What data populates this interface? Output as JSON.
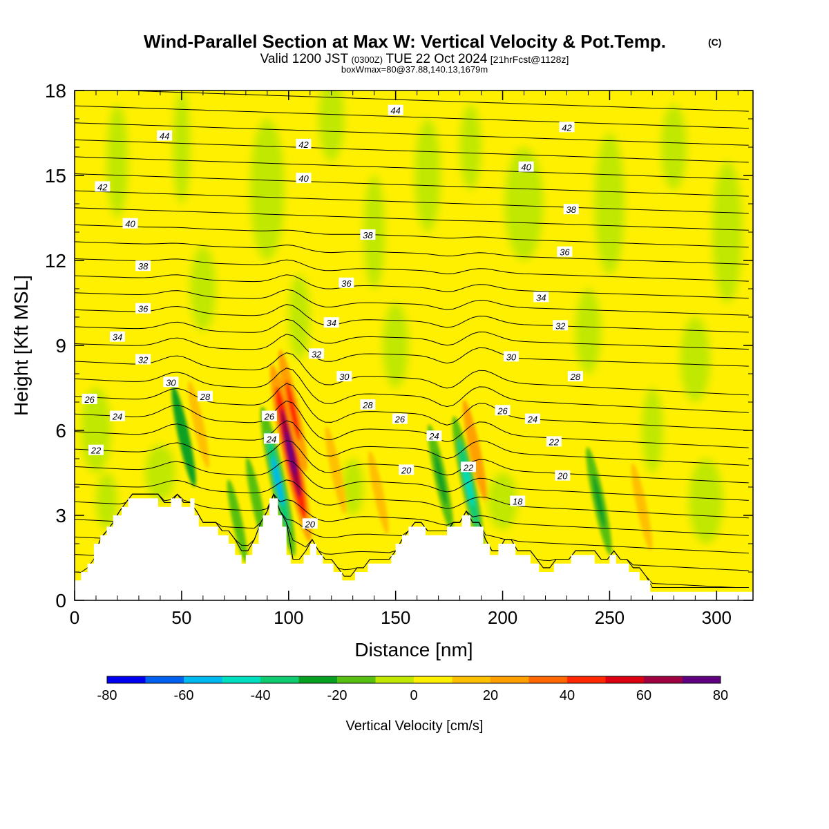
{
  "header": {
    "title": "Wind-Parallel Section at Max W: Vertical Velocity & Pot.Temp.",
    "title_mark": "(C)",
    "valid_prefix": "Valid 1200 JST",
    "valid_zulu": "(0300Z)",
    "valid_date": "TUE 22 Oct 2024",
    "forecast": "[21hrFcst@1128z]",
    "box_info": "boxWmax=80@37.88,140.13,1679m"
  },
  "chart_data": {
    "type": "heatmap",
    "xlabel": "Distance [nm]",
    "ylabel": "Height [Kft MSL]",
    "xlim": [
      0,
      317
    ],
    "ylim": [
      0,
      18
    ],
    "x_ticks": [
      0,
      50,
      100,
      150,
      200,
      250,
      300
    ],
    "y_ticks": [
      0,
      3,
      6,
      9,
      12,
      15,
      18
    ],
    "colorbar": {
      "label": "Vertical Velocity [cm/s]",
      "tick_values": [
        -80,
        -60,
        -40,
        -20,
        0,
        20,
        40,
        60,
        80
      ],
      "colors": [
        "#0000f0",
        "#0060f0",
        "#00b8f0",
        "#00e0c0",
        "#10cc70",
        "#08a020",
        "#58c010",
        "#c0e800",
        "#fff000",
        "#ffc000",
        "#ffa000",
        "#ff6800",
        "#ff2800",
        "#dc0010",
        "#a00040",
        "#600080"
      ]
    },
    "theta_contour_labels": [
      {
        "v": "44",
        "x": 150,
        "y": 17.3
      },
      {
        "v": "42",
        "x": 230,
        "y": 16.7
      },
      {
        "v": "44",
        "x": 42,
        "y": 16.4
      },
      {
        "v": "42",
        "x": 107,
        "y": 16.1
      },
      {
        "v": "40",
        "x": 211,
        "y": 15.3
      },
      {
        "v": "40",
        "x": 107,
        "y": 14.9
      },
      {
        "v": "42",
        "x": 13,
        "y": 14.6
      },
      {
        "v": "38",
        "x": 232,
        "y": 13.8
      },
      {
        "v": "40",
        "x": 26,
        "y": 13.3
      },
      {
        "v": "38",
        "x": 137,
        "y": 12.9
      },
      {
        "v": "36",
        "x": 229,
        "y": 12.3
      },
      {
        "v": "38",
        "x": 32,
        "y": 11.8
      },
      {
        "v": "36",
        "x": 127,
        "y": 11.2
      },
      {
        "v": "34",
        "x": 218,
        "y": 10.7
      },
      {
        "v": "36",
        "x": 32,
        "y": 10.3
      },
      {
        "v": "34",
        "x": 120,
        "y": 9.8
      },
      {
        "v": "32",
        "x": 227,
        "y": 9.7
      },
      {
        "v": "34",
        "x": 20,
        "y": 9.3
      },
      {
        "v": "32",
        "x": 113,
        "y": 8.7
      },
      {
        "v": "30",
        "x": 204,
        "y": 8.6
      },
      {
        "v": "32",
        "x": 32,
        "y": 8.5
      },
      {
        "v": "28",
        "x": 234,
        "y": 7.9
      },
      {
        "v": "30",
        "x": 126,
        "y": 7.9
      },
      {
        "v": "30",
        "x": 45,
        "y": 7.7
      },
      {
        "v": "28",
        "x": 61,
        "y": 7.2
      },
      {
        "v": "26",
        "x": 7,
        "y": 7.1
      },
      {
        "v": "28",
        "x": 137,
        "y": 6.9
      },
      {
        "v": "26",
        "x": 200,
        "y": 6.7
      },
      {
        "v": "26",
        "x": 91,
        "y": 6.5
      },
      {
        "v": "24",
        "x": 20,
        "y": 6.5
      },
      {
        "v": "26",
        "x": 152,
        "y": 6.4
      },
      {
        "v": "24",
        "x": 214,
        "y": 6.4
      },
      {
        "v": "24",
        "x": 168,
        "y": 5.8
      },
      {
        "v": "24",
        "x": 92,
        "y": 5.7
      },
      {
        "v": "22",
        "x": 224,
        "y": 5.6
      },
      {
        "v": "22",
        "x": 10,
        "y": 5.3
      },
      {
        "v": "22",
        "x": 184,
        "y": 4.7
      },
      {
        "v": "20",
        "x": 155,
        "y": 4.6
      },
      {
        "v": "20",
        "x": 228,
        "y": 4.4
      },
      {
        "v": "18",
        "x": 207,
        "y": 3.5
      },
      {
        "v": "20",
        "x": 110,
        "y": 2.7
      }
    ],
    "terrain_kft": [
      [
        0,
        0.7
      ],
      [
        3,
        0.7
      ],
      [
        3,
        1.0
      ],
      [
        6,
        1.0
      ],
      [
        6,
        1.3
      ],
      [
        9,
        1.3
      ],
      [
        9,
        2.0
      ],
      [
        12,
        2.0
      ],
      [
        12,
        2.3
      ],
      [
        15,
        2.3
      ],
      [
        15,
        2.6
      ],
      [
        18,
        2.6
      ],
      [
        18,
        3.0
      ],
      [
        22,
        3.0
      ],
      [
        22,
        3.3
      ],
      [
        25,
        3.3
      ],
      [
        25,
        3.6
      ],
      [
        39,
        3.6
      ],
      [
        39,
        3.3
      ],
      [
        45,
        3.3
      ],
      [
        45,
        3.6
      ],
      [
        50,
        3.6
      ],
      [
        50,
        3.3
      ],
      [
        54,
        3.3
      ],
      [
        54,
        3.6
      ],
      [
        56,
        3.6
      ],
      [
        56,
        3.0
      ],
      [
        58,
        3.0
      ],
      [
        58,
        2.6
      ],
      [
        67,
        2.6
      ],
      [
        67,
        2.3
      ],
      [
        72,
        2.3
      ],
      [
        72,
        2.0
      ],
      [
        75,
        2.0
      ],
      [
        75,
        1.6
      ],
      [
        78,
        1.6
      ],
      [
        78,
        1.3
      ],
      [
        80,
        1.3
      ],
      [
        80,
        1.6
      ],
      [
        83,
        1.6
      ],
      [
        83,
        2.0
      ],
      [
        86,
        2.0
      ],
      [
        86,
        2.6
      ],
      [
        88,
        2.6
      ],
      [
        88,
        3.0
      ],
      [
        91,
        3.0
      ],
      [
        91,
        3.6
      ],
      [
        95,
        3.6
      ],
      [
        95,
        3.0
      ],
      [
        97,
        3.0
      ],
      [
        97,
        2.6
      ],
      [
        99,
        2.6
      ],
      [
        99,
        1.6
      ],
      [
        101,
        1.6
      ],
      [
        101,
        1.3
      ],
      [
        107,
        1.3
      ],
      [
        107,
        1.6
      ],
      [
        110,
        1.6
      ],
      [
        110,
        2.0
      ],
      [
        113,
        2.0
      ],
      [
        113,
        1.6
      ],
      [
        116,
        1.6
      ],
      [
        116,
        1.3
      ],
      [
        121,
        1.3
      ],
      [
        121,
        1.0
      ],
      [
        125,
        1.0
      ],
      [
        125,
        0.7
      ],
      [
        131,
        0.7
      ],
      [
        131,
        1.0
      ],
      [
        137,
        1.0
      ],
      [
        137,
        1.3
      ],
      [
        148,
        1.3
      ],
      [
        148,
        1.6
      ],
      [
        150,
        1.6
      ],
      [
        150,
        2.0
      ],
      [
        153,
        2.0
      ],
      [
        153,
        2.3
      ],
      [
        156,
        2.3
      ],
      [
        156,
        2.6
      ],
      [
        164,
        2.6
      ],
      [
        164,
        2.3
      ],
      [
        174,
        2.3
      ],
      [
        174,
        2.6
      ],
      [
        181,
        2.6
      ],
      [
        181,
        3.0
      ],
      [
        185,
        3.0
      ],
      [
        185,
        2.6
      ],
      [
        191,
        2.6
      ],
      [
        191,
        2.0
      ],
      [
        194,
        2.0
      ],
      [
        194,
        1.6
      ],
      [
        198,
        1.6
      ],
      [
        198,
        2.0
      ],
      [
        206,
        2.0
      ],
      [
        206,
        1.6
      ],
      [
        213,
        1.6
      ],
      [
        213,
        1.3
      ],
      [
        217,
        1.3
      ],
      [
        217,
        1.0
      ],
      [
        224,
        1.0
      ],
      [
        224,
        1.3
      ],
      [
        232,
        1.3
      ],
      [
        232,
        1.6
      ],
      [
        243,
        1.6
      ],
      [
        243,
        1.3
      ],
      [
        250,
        1.3
      ],
      [
        250,
        1.6
      ],
      [
        253,
        1.6
      ],
      [
        253,
        1.3
      ],
      [
        259,
        1.3
      ],
      [
        259,
        1.0
      ],
      [
        264,
        1.0
      ],
      [
        264,
        0.7
      ],
      [
        269,
        0.7
      ],
      [
        269,
        0.3
      ],
      [
        317,
        0.3
      ]
    ],
    "updraft_cores_cms": [
      {
        "x": 101,
        "y": 5.2,
        "w": 80
      },
      {
        "x": 102,
        "y": 6.7,
        "w": 40
      },
      {
        "x": 58,
        "y": 6.2,
        "w": 15
      },
      {
        "x": 187,
        "y": 5.3,
        "w": 25
      },
      {
        "x": 122,
        "y": 4.6,
        "w": 15
      },
      {
        "x": 142,
        "y": 3.8,
        "w": 12
      },
      {
        "x": 265,
        "y": 3.3,
        "w": 15
      }
    ],
    "downdraft_cores_cms": [
      {
        "x": 95,
        "y": 4.2,
        "w": -60
      },
      {
        "x": 51,
        "y": 5.8,
        "w": -25
      },
      {
        "x": 171,
        "y": 4.3,
        "w": -30
      },
      {
        "x": 184,
        "y": 4.1,
        "w": -50
      },
      {
        "x": 245,
        "y": 3.5,
        "w": -30
      },
      {
        "x": 85,
        "y": 3.5,
        "w": -15
      },
      {
        "x": 76,
        "y": 2.8,
        "w": -12
      }
    ]
  }
}
